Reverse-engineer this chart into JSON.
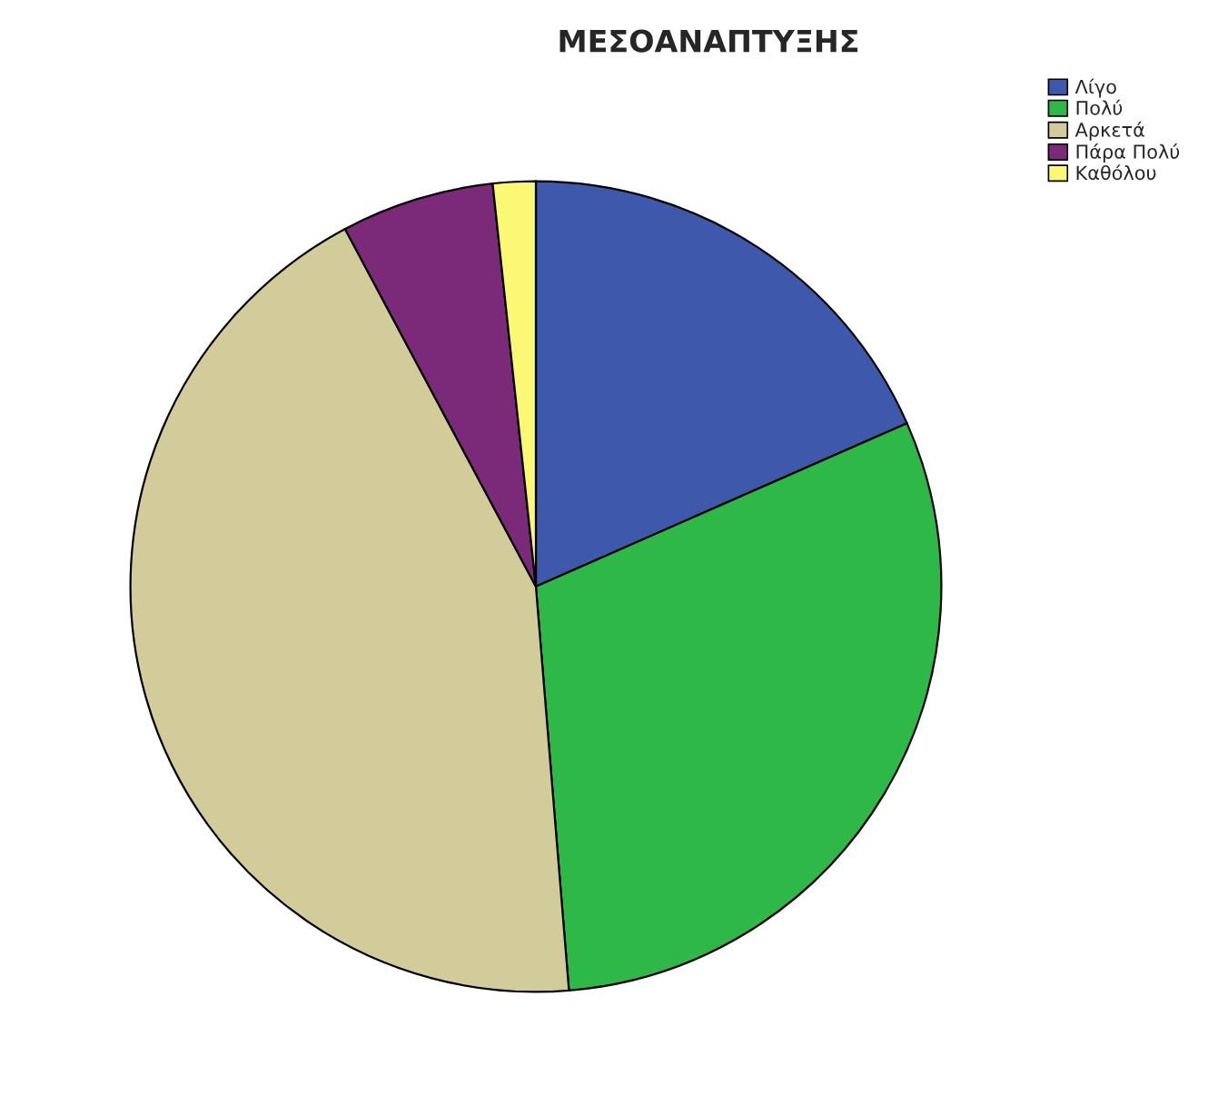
{
  "chart_data": {
    "type": "pie",
    "title": "ΜΕΣΟΑΝΑΠΤΥΞΗΣ",
    "categories": [
      "Λίγο",
      "Πολύ",
      "Αρκετά",
      "Πάρα Πολύ",
      "Καθόλου"
    ],
    "values": [
      18.4,
      30.3,
      43.5,
      6.1,
      1.7
    ],
    "colors": [
      "#3e58ac",
      "#2eb848",
      "#d2cc9a",
      "#7b2a7a",
      "#fbf873"
    ],
    "legend": "top right"
  }
}
